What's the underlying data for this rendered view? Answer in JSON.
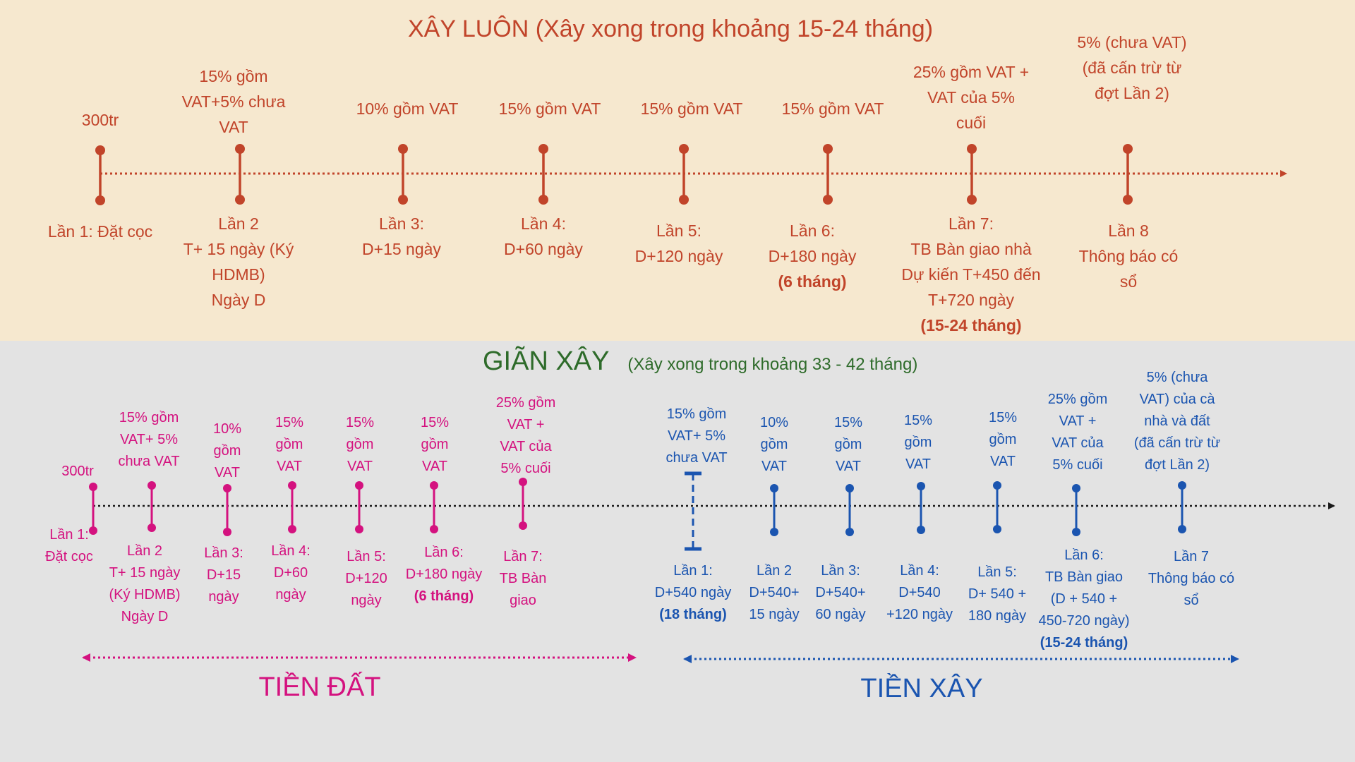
{
  "colors": {
    "top_bg": "#f6e8cf",
    "bottom_bg": "#e3e3e3",
    "top_accent": "#c1442a",
    "green_title": "#2e6b2a",
    "land": "#d4127f",
    "build": "#1b55b0",
    "axis_dark": "#1a1a1a"
  },
  "top": {
    "title": "XÂY LUÔN (Xây xong trong khoảng 15-24 tháng)",
    "milestones": [
      {
        "above": [
          "300tr"
        ],
        "below": [
          "Lần 1: Đặt cọc"
        ]
      },
      {
        "above": [
          "15% gồm",
          "VAT+5% chưa",
          "VAT"
        ],
        "below": [
          "Lần 2",
          "T+ 15 ngày (Ký",
          "HDMB)",
          "Ngày D"
        ]
      },
      {
        "above": [
          "10% gồm VAT"
        ],
        "below": [
          "Lần 3:",
          "D+15 ngày"
        ]
      },
      {
        "above": [
          "15% gồm VAT"
        ],
        "below": [
          "Lần 4:",
          "D+60 ngày"
        ]
      },
      {
        "above": [
          "15% gồm VAT"
        ],
        "below": [
          "Lần 5:",
          "D+120 ngày"
        ]
      },
      {
        "above": [
          "15% gồm VAT"
        ],
        "below": [
          "Lần 6:",
          "D+180 ngày",
          "(6 tháng)"
        ]
      },
      {
        "above": [
          "25% gồm VAT +",
          "VAT của 5%",
          "cuối"
        ],
        "below": [
          "Lần 7:",
          "TB Bàn giao nhà",
          "Dự kiến T+450 đến",
          "T+720 ngày",
          "(15-24 tháng)"
        ]
      },
      {
        "above": [
          "5% (chưa VAT)",
          "(đã cấn trừ từ",
          "đợt Lần 2)"
        ],
        "below": [
          "Lần 8",
          "Thông báo có",
          "sổ"
        ]
      }
    ]
  },
  "bottom": {
    "title": "GIÃN XÂY",
    "subtitle": "(Xây xong trong khoảng 33 - 42 tháng)",
    "land_milestones": [
      {
        "above": [
          "300tr"
        ],
        "below": [
          "Lần 1:",
          "Đặt cọc"
        ]
      },
      {
        "above": [
          "15% gồm",
          "VAT+ 5%",
          "chưa VAT"
        ],
        "below": [
          "Lần 2",
          "T+ 15 ngày",
          "(Ký HDMB)",
          "Ngày D"
        ]
      },
      {
        "above": [
          "10%",
          "gồm",
          "VAT"
        ],
        "below": [
          "Lần 3:",
          "D+15",
          "ngày"
        ]
      },
      {
        "above": [
          "15%",
          "gồm",
          "VAT"
        ],
        "below": [
          "Lần 4:",
          "D+60",
          "ngày"
        ]
      },
      {
        "above": [
          "15%",
          "gồm",
          "VAT"
        ],
        "below": [
          "Lần 5:",
          "D+120",
          "ngày"
        ]
      },
      {
        "above": [
          "15%",
          "gồm",
          "VAT"
        ],
        "below": [
          "Lần 6:",
          "D+180 ngày",
          "(6 tháng)"
        ]
      },
      {
        "above": [
          "25% gồm",
          "VAT +",
          "VAT của",
          "5% cuối"
        ],
        "below": [
          "Lần 7:",
          "TB Bàn",
          "giao"
        ]
      }
    ],
    "build_milestones": [
      {
        "above": [
          "15% gồm",
          "VAT+ 5%",
          "chưa VAT"
        ],
        "below": [
          "Lần 1:",
          "D+540 ngày",
          "(18 tháng)"
        ]
      },
      {
        "above": [
          "10%",
          "gồm",
          "VAT"
        ],
        "below": [
          "Lần 2",
          "D+540+",
          "15 ngày"
        ]
      },
      {
        "above": [
          "15%",
          "gồm",
          "VAT"
        ],
        "below": [
          "Lần 3:",
          "D+540+",
          "60 ngày"
        ]
      },
      {
        "above": [
          "15%",
          "gồm",
          "VAT"
        ],
        "below": [
          "Lần 4:",
          "D+540",
          "+120 ngày"
        ]
      },
      {
        "above": [
          "15%",
          "gồm",
          "VAT"
        ],
        "below": [
          "Lần 5:",
          "D+ 540 +",
          "180 ngày"
        ]
      },
      {
        "above": [
          "25% gồm",
          "VAT +",
          "VAT của",
          "5% cuối"
        ],
        "below": [
          "Lần 6:",
          "TB Bàn giao",
          "(D + 540 +",
          "450-720 ngày)",
          "(15-24 tháng)"
        ]
      },
      {
        "above": [
          "5% (chưa",
          "VAT) của cà",
          "nhà và đất",
          "(đã cấn trừ từ",
          "đợt Lần 2)"
        ],
        "below": [
          "Lần 7",
          "Thông báo có",
          "sổ"
        ]
      }
    ],
    "land_label": "TIỀN ĐẤT",
    "build_label": "TIỀN XÂY"
  }
}
